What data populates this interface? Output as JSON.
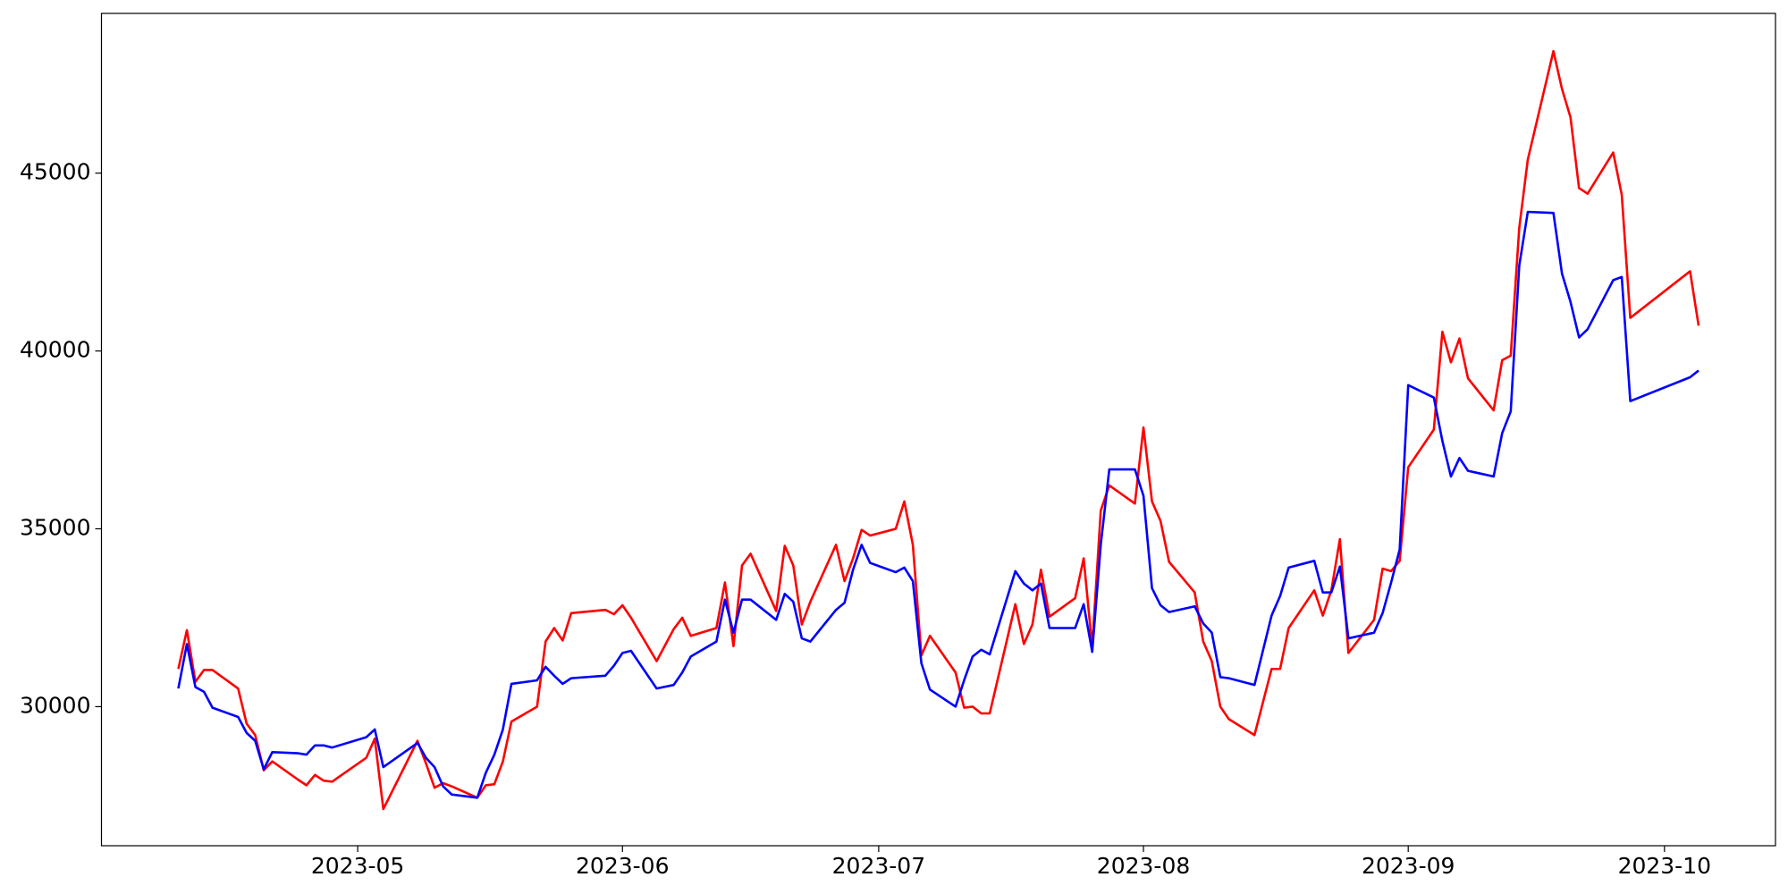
{
  "chart_data": {
    "type": "line",
    "x": [
      "2023-04-10",
      "2023-04-11",
      "2023-04-12",
      "2023-04-13",
      "2023-04-14",
      "2023-04-17",
      "2023-04-18",
      "2023-04-19",
      "2023-04-20",
      "2023-04-21",
      "2023-04-24",
      "2023-04-25",
      "2023-04-26",
      "2023-04-27",
      "2023-04-28",
      "2023-05-02",
      "2023-05-03",
      "2023-05-04",
      "2023-05-08",
      "2023-05-09",
      "2023-05-10",
      "2023-05-11",
      "2023-05-12",
      "2023-05-15",
      "2023-05-16",
      "2023-05-17",
      "2023-05-18",
      "2023-05-19",
      "2023-05-22",
      "2023-05-23",
      "2023-05-24",
      "2023-05-25",
      "2023-05-26",
      "2023-05-30",
      "2023-05-31",
      "2023-06-01",
      "2023-06-02",
      "2023-06-05",
      "2023-06-07",
      "2023-06-08",
      "2023-06-09",
      "2023-06-12",
      "2023-06-13",
      "2023-06-14",
      "2023-06-15",
      "2023-06-16",
      "2023-06-19",
      "2023-06-20",
      "2023-06-21",
      "2023-06-22",
      "2023-06-23",
      "2023-06-26",
      "2023-06-27",
      "2023-06-28",
      "2023-06-29",
      "2023-06-30",
      "2023-07-03",
      "2023-07-04",
      "2023-07-05",
      "2023-07-06",
      "2023-07-07",
      "2023-07-10",
      "2023-07-11",
      "2023-07-12",
      "2023-07-13",
      "2023-07-14",
      "2023-07-17",
      "2023-07-18",
      "2023-07-19",
      "2023-07-20",
      "2023-07-21",
      "2023-07-24",
      "2023-07-25",
      "2023-07-26",
      "2023-07-27",
      "2023-07-28",
      "2023-07-31",
      "2023-08-01",
      "2023-08-02",
      "2023-08-03",
      "2023-08-04",
      "2023-08-07",
      "2023-08-08",
      "2023-08-09",
      "2023-08-10",
      "2023-08-11",
      "2023-08-14",
      "2023-08-16",
      "2023-08-17",
      "2023-08-18",
      "2023-08-21",
      "2023-08-22",
      "2023-08-23",
      "2023-08-24",
      "2023-08-25",
      "2023-08-28",
      "2023-08-29",
      "2023-08-30",
      "2023-08-31",
      "2023-09-01",
      "2023-09-04",
      "2023-09-05",
      "2023-09-06",
      "2023-09-07",
      "2023-09-08",
      "2023-09-11",
      "2023-09-12",
      "2023-09-13",
      "2023-09-14",
      "2023-09-15",
      "2023-09-18",
      "2023-09-19",
      "2023-09-20",
      "2023-09-21",
      "2023-09-22",
      "2023-09-25",
      "2023-09-26",
      "2023-09-27",
      "2023-10-04",
      "2023-10-05"
    ],
    "series": [
      {
        "color": "#ff0000",
        "values": [
          31060,
          32150,
          30700,
          31030,
          31030,
          30510,
          29520,
          29200,
          28210,
          28460,
          27950,
          27790,
          28080,
          27920,
          27890,
          28560,
          29100,
          27120,
          29040,
          28400,
          27720,
          27850,
          27760,
          27440,
          27790,
          27820,
          28460,
          29580,
          30000,
          31830,
          32210,
          31860,
          32630,
          32720,
          32600,
          32850,
          32500,
          31280,
          32180,
          32500,
          31990,
          32210,
          33490,
          31700,
          33970,
          34300,
          32690,
          34520,
          33970,
          32310,
          32950,
          34550,
          33530,
          34170,
          34970,
          34810,
          35000,
          35770,
          34550,
          31440,
          31990,
          30960,
          29970,
          30000,
          29810,
          29810,
          32880,
          31760,
          32310,
          33850,
          32530,
          33050,
          34170,
          31670,
          35510,
          36220,
          35710,
          37850,
          35770,
          35220,
          34070,
          33210,
          31830,
          31280,
          30000,
          29650,
          29200,
          31060,
          31060,
          32210,
          33270,
          32560,
          33270,
          34710,
          31510,
          32440,
          33880,
          33810,
          34100,
          36730,
          37790,
          40540,
          39680,
          40350,
          39230,
          38330,
          39740,
          39870,
          43460,
          45380,
          48430,
          47370,
          46570,
          44580,
          44420,
          45580,
          44390,
          40930,
          42240,
          40710
        ]
      },
      {
        "color": "#0000ff",
        "values": [
          30510,
          31760,
          30550,
          30420,
          29970,
          29710,
          29260,
          29040,
          28240,
          28720,
          28690,
          28650,
          28910,
          28910,
          28850,
          29140,
          29360,
          28300,
          28980,
          28560,
          28300,
          27760,
          27530,
          27440,
          28140,
          28650,
          29360,
          30640,
          30740,
          31120,
          30870,
          30640,
          30800,
          30870,
          31150,
          31510,
          31570,
          30510,
          30610,
          30960,
          31410,
          31830,
          33010,
          32080,
          33010,
          33010,
          32440,
          33170,
          32950,
          31920,
          31830,
          32720,
          32920,
          33850,
          34550,
          34040,
          33780,
          33910,
          33530,
          31220,
          30480,
          30000,
          30740,
          31410,
          31600,
          31470,
          33810,
          33460,
          33270,
          33460,
          32210,
          32210,
          32880,
          31540,
          34550,
          36670,
          36670,
          35930,
          33330,
          32850,
          32660,
          32820,
          32340,
          32080,
          30830,
          30800,
          30610,
          32560,
          33110,
          33910,
          34100,
          33210,
          33210,
          33940,
          31920,
          32080,
          32630,
          33490,
          34420,
          39040,
          38690,
          37470,
          36470,
          36990,
          36630,
          36470,
          37690,
          38300,
          42400,
          43910,
          43880,
          42180,
          41380,
          40380,
          40610,
          41990,
          42080,
          38590,
          39260,
          39450
        ]
      }
    ],
    "xlim": [
      "2023-04-01",
      "2023-10-14"
    ],
    "xticks": [
      {
        "value": "2023-05-01",
        "label": "2023-05"
      },
      {
        "value": "2023-06-01",
        "label": "2023-06"
      },
      {
        "value": "2023-07-01",
        "label": "2023-07"
      },
      {
        "value": "2023-08-01",
        "label": "2023-08"
      },
      {
        "value": "2023-09-01",
        "label": "2023-09"
      },
      {
        "value": "2023-10-01",
        "label": "2023-10"
      }
    ],
    "ylim": [
      26090,
      49490
    ],
    "yticks": [
      30000,
      35000,
      40000,
      45000
    ],
    "grid": false
  }
}
